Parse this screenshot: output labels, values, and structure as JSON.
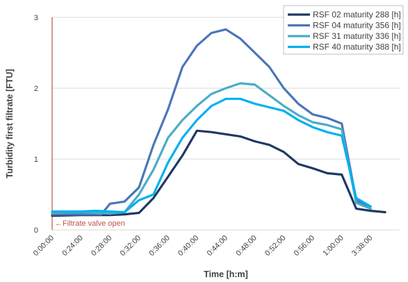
{
  "chart_data": {
    "type": "line",
    "title": "",
    "xlabel": "Time [h:m]",
    "ylabel": "Turbidity first filtrate [FTU]",
    "ylim": [
      0,
      3
    ],
    "y_ticks": [
      0,
      1,
      2,
      3
    ],
    "grid": "horizontal",
    "legend_position": "top-right",
    "x_tick_labels": [
      "0:00:00",
      "0:24:00",
      "0:28:00",
      "0:32:00",
      "0:36:00",
      "0:40:00",
      "0:44:00",
      "0:48:00",
      "0:52:00",
      "0:56:00",
      "1:00:00",
      "3:38:00"
    ],
    "annotation": {
      "text": "←Filtrate valve open",
      "x": 0,
      "color": "#c0504d"
    },
    "series": [
      {
        "name": "RSF 02 maturity 288 [h]",
        "color": "#1f3864",
        "points": [
          [
            0,
            0.2
          ],
          [
            1,
            0.21
          ],
          [
            2,
            0.21
          ],
          [
            2.5,
            0.22
          ],
          [
            3,
            0.24
          ],
          [
            3.5,
            0.45
          ],
          [
            4,
            0.75
          ],
          [
            4.5,
            1.05
          ],
          [
            5,
            1.4
          ],
          [
            5.5,
            1.38
          ],
          [
            6,
            1.35
          ],
          [
            6.5,
            1.32
          ],
          [
            7,
            1.25
          ],
          [
            7.5,
            1.2
          ],
          [
            8,
            1.1
          ],
          [
            8.5,
            0.93
          ],
          [
            9,
            0.87
          ],
          [
            9.5,
            0.8
          ],
          [
            10,
            0.78
          ],
          [
            10.5,
            0.3
          ],
          [
            11,
            0.27
          ],
          [
            11.5,
            0.25
          ]
        ]
      },
      {
        "name": "RSF 04 maturity 356 [h]",
        "color": "#4a76b9",
        "points": [
          [
            0,
            0.22
          ],
          [
            1,
            0.22
          ],
          [
            1.7,
            0.22
          ],
          [
            2,
            0.37
          ],
          [
            2.5,
            0.4
          ],
          [
            3,
            0.6
          ],
          [
            3.5,
            1.2
          ],
          [
            4,
            1.7
          ],
          [
            4.5,
            2.3
          ],
          [
            5,
            2.6
          ],
          [
            5.5,
            2.78
          ],
          [
            6,
            2.83
          ],
          [
            6.5,
            2.7
          ],
          [
            7,
            2.5
          ],
          [
            7.5,
            2.3
          ],
          [
            8,
            2.0
          ],
          [
            8.5,
            1.78
          ],
          [
            9,
            1.63
          ],
          [
            9.5,
            1.58
          ],
          [
            10,
            1.5
          ],
          [
            10.5,
            0.42
          ],
          [
            11,
            0.3
          ]
        ]
      },
      {
        "name": "RSF 31 maturity 336 [h]",
        "color": "#4bacc6",
        "points": [
          [
            0,
            0.24
          ],
          [
            1,
            0.25
          ],
          [
            2,
            0.23
          ],
          [
            2.5,
            0.25
          ],
          [
            3,
            0.5
          ],
          [
            3.5,
            0.85
          ],
          [
            4,
            1.3
          ],
          [
            4.5,
            1.55
          ],
          [
            5,
            1.75
          ],
          [
            5.5,
            1.92
          ],
          [
            6,
            2.0
          ],
          [
            6.5,
            2.07
          ],
          [
            7,
            2.05
          ],
          [
            7.5,
            1.9
          ],
          [
            8,
            1.75
          ],
          [
            8.5,
            1.62
          ],
          [
            9,
            1.52
          ],
          [
            9.5,
            1.48
          ],
          [
            10,
            1.42
          ],
          [
            10.5,
            0.38
          ],
          [
            11,
            0.3
          ]
        ]
      },
      {
        "name": "RSF 40 maturity 388 [h]",
        "color": "#00b0f0",
        "points": [
          [
            0,
            0.26
          ],
          [
            1,
            0.26
          ],
          [
            1.5,
            0.27
          ],
          [
            2,
            0.26
          ],
          [
            2.5,
            0.25
          ],
          [
            3,
            0.42
          ],
          [
            3.5,
            0.5
          ],
          [
            4,
            0.95
          ],
          [
            4.5,
            1.3
          ],
          [
            5,
            1.55
          ],
          [
            5.5,
            1.75
          ],
          [
            6,
            1.85
          ],
          [
            6.5,
            1.85
          ],
          [
            7,
            1.78
          ],
          [
            7.5,
            1.73
          ],
          [
            8,
            1.68
          ],
          [
            8.5,
            1.55
          ],
          [
            9,
            1.45
          ],
          [
            9.5,
            1.38
          ],
          [
            10,
            1.33
          ],
          [
            10.5,
            0.45
          ],
          [
            11,
            0.33
          ]
        ]
      }
    ]
  }
}
